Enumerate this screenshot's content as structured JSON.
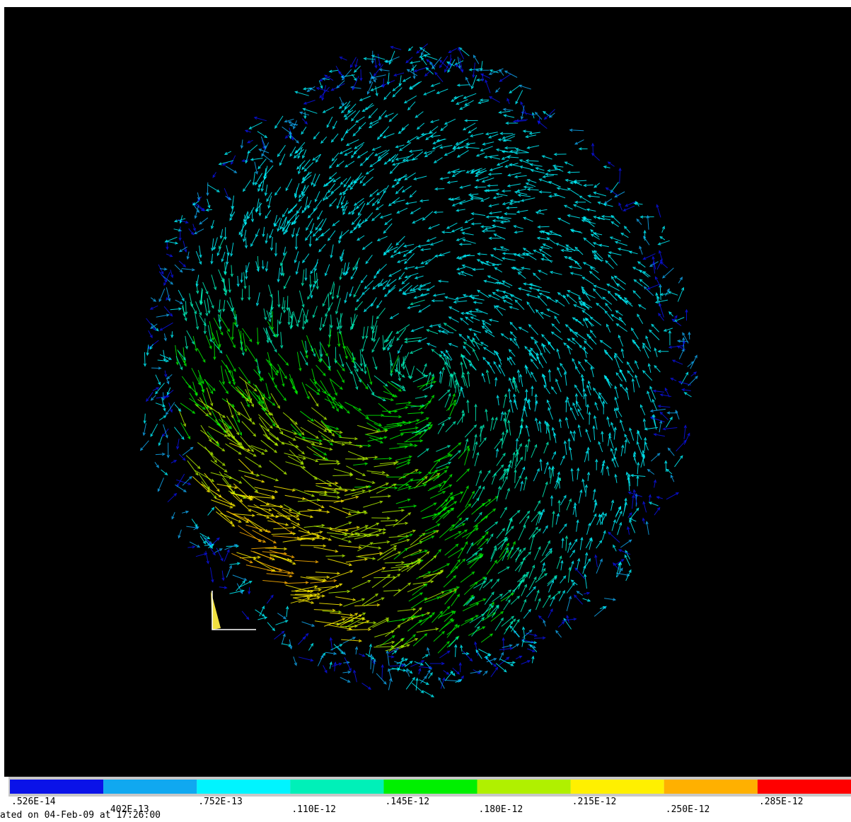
{
  "legend": {
    "labels": [
      ".526E-14",
      ".402E-13",
      ".752E-13",
      ".110E-12",
      ".145E-12",
      ".180E-12",
      ".215E-12",
      ".250E-12",
      ".285E-12"
    ],
    "colors": [
      "#0a12e8",
      "#10a8f0",
      "#00f4ff",
      "#00f0b8",
      "#00f000",
      "#b0f000",
      "#fff000",
      "#ffb000",
      "#ff0000"
    ]
  },
  "footer": {
    "text": "ated on 04-Feb-09 at 17:26:00"
  }
}
